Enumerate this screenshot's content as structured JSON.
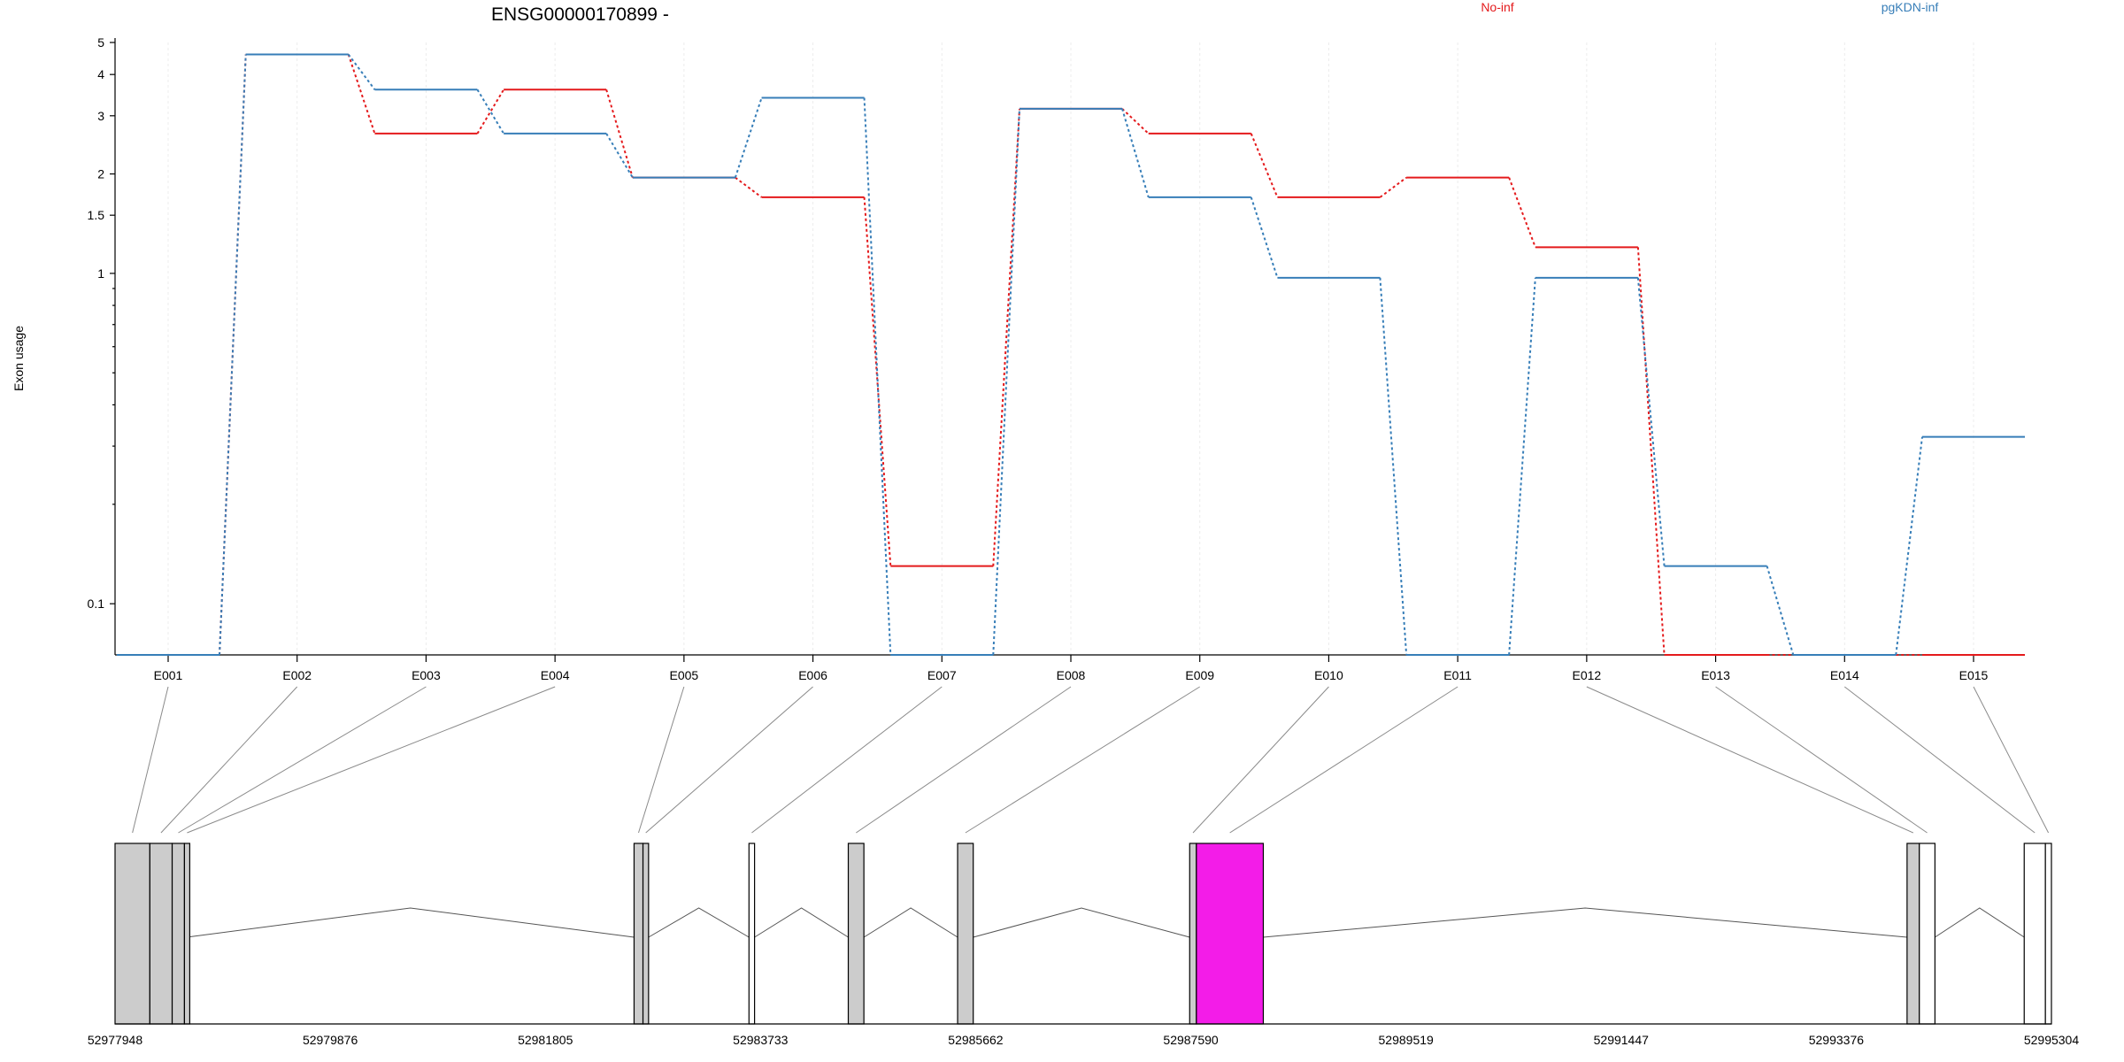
{
  "chart_data": {
    "type": "line",
    "title": "ENSG00000170899 -",
    "ylabel": "Exon usage",
    "y_scale": "log",
    "ylim": [
      0.07,
      5
    ],
    "y_ticks": [
      {
        "value": 0.1,
        "label": "0.1"
      },
      {
        "value": 1,
        "label": "1"
      },
      {
        "value": 1.5,
        "label": "1.5"
      },
      {
        "value": 2,
        "label": "2"
      },
      {
        "value": 3,
        "label": "3"
      },
      {
        "value": 4,
        "label": "4"
      },
      {
        "value": 5,
        "label": "5"
      }
    ],
    "y_minor_ticks": [
      0.2,
      0.3,
      0.4,
      0.5,
      0.6,
      0.7,
      0.8,
      0.9
    ],
    "categories": [
      "E001",
      "E002",
      "E003",
      "E004",
      "E005",
      "E006",
      "E007",
      "E008",
      "E009",
      "E010",
      "E011",
      "E012",
      "E013",
      "E014",
      "E015"
    ],
    "series": [
      {
        "name": "No-inf",
        "color": "#e41a1c",
        "values": [
          0.07,
          4.6,
          2.65,
          3.6,
          1.95,
          1.7,
          0.13,
          3.15,
          2.65,
          1.7,
          1.95,
          1.2,
          0.07,
          0.07,
          0.07
        ]
      },
      {
        "name": "pgKDN-inf",
        "color": "#377eb8",
        "values": [
          0.07,
          4.6,
          3.6,
          2.65,
          1.95,
          3.4,
          0.07,
          3.15,
          1.7,
          0.97,
          0.07,
          0.97,
          0.13,
          0.07,
          0.32
        ]
      }
    ],
    "grid": true,
    "legend_position": "top",
    "gene_model": {
      "coordinate_labels": [
        "52977948",
        "52979876",
        "52981805",
        "52983733",
        "52985662",
        "52987590",
        "52989519",
        "52991447",
        "52993376",
        "52995304"
      ],
      "range": [
        52977948,
        52995304
      ],
      "highlighted_exon": "E011",
      "highlight_color": "#f31ce8",
      "exon_fill": "#cccccc",
      "exons": [
        {
          "id": "E001",
          "start": 52977948,
          "end": 52978260,
          "filled": true
        },
        {
          "id": "E002",
          "start": 52978260,
          "end": 52978460,
          "filled": true
        },
        {
          "id": "E003",
          "start": 52978460,
          "end": 52978570,
          "filled": true
        },
        {
          "id": "E004",
          "start": 52978570,
          "end": 52978590,
          "filled": true
        },
        {
          "id": "E005",
          "start": 52982600,
          "end": 52982680,
          "filled": true
        },
        {
          "id": "E006",
          "start": 52982680,
          "end": 52982730,
          "filled": true
        },
        {
          "id": "E007",
          "start": 52983630,
          "end": 52983680,
          "filled": false
        },
        {
          "id": "E008",
          "start": 52984520,
          "end": 52984660,
          "filled": true
        },
        {
          "id": "E009",
          "start": 52985500,
          "end": 52985640,
          "filled": true
        },
        {
          "id": "E010",
          "start": 52987580,
          "end": 52987640,
          "filled": true
        },
        {
          "id": "E011",
          "start": 52987640,
          "end": 52988240,
          "filled": true
        },
        {
          "id": "E012",
          "start": 52994010,
          "end": 52994120,
          "filled": true
        },
        {
          "id": "E013",
          "start": 52994120,
          "end": 52994260,
          "filled": false
        },
        {
          "id": "E014",
          "start": 52995060,
          "end": 52995250,
          "filled": false
        },
        {
          "id": "E015",
          "start": 52995250,
          "end": 52995304,
          "filled": false
        }
      ]
    }
  }
}
